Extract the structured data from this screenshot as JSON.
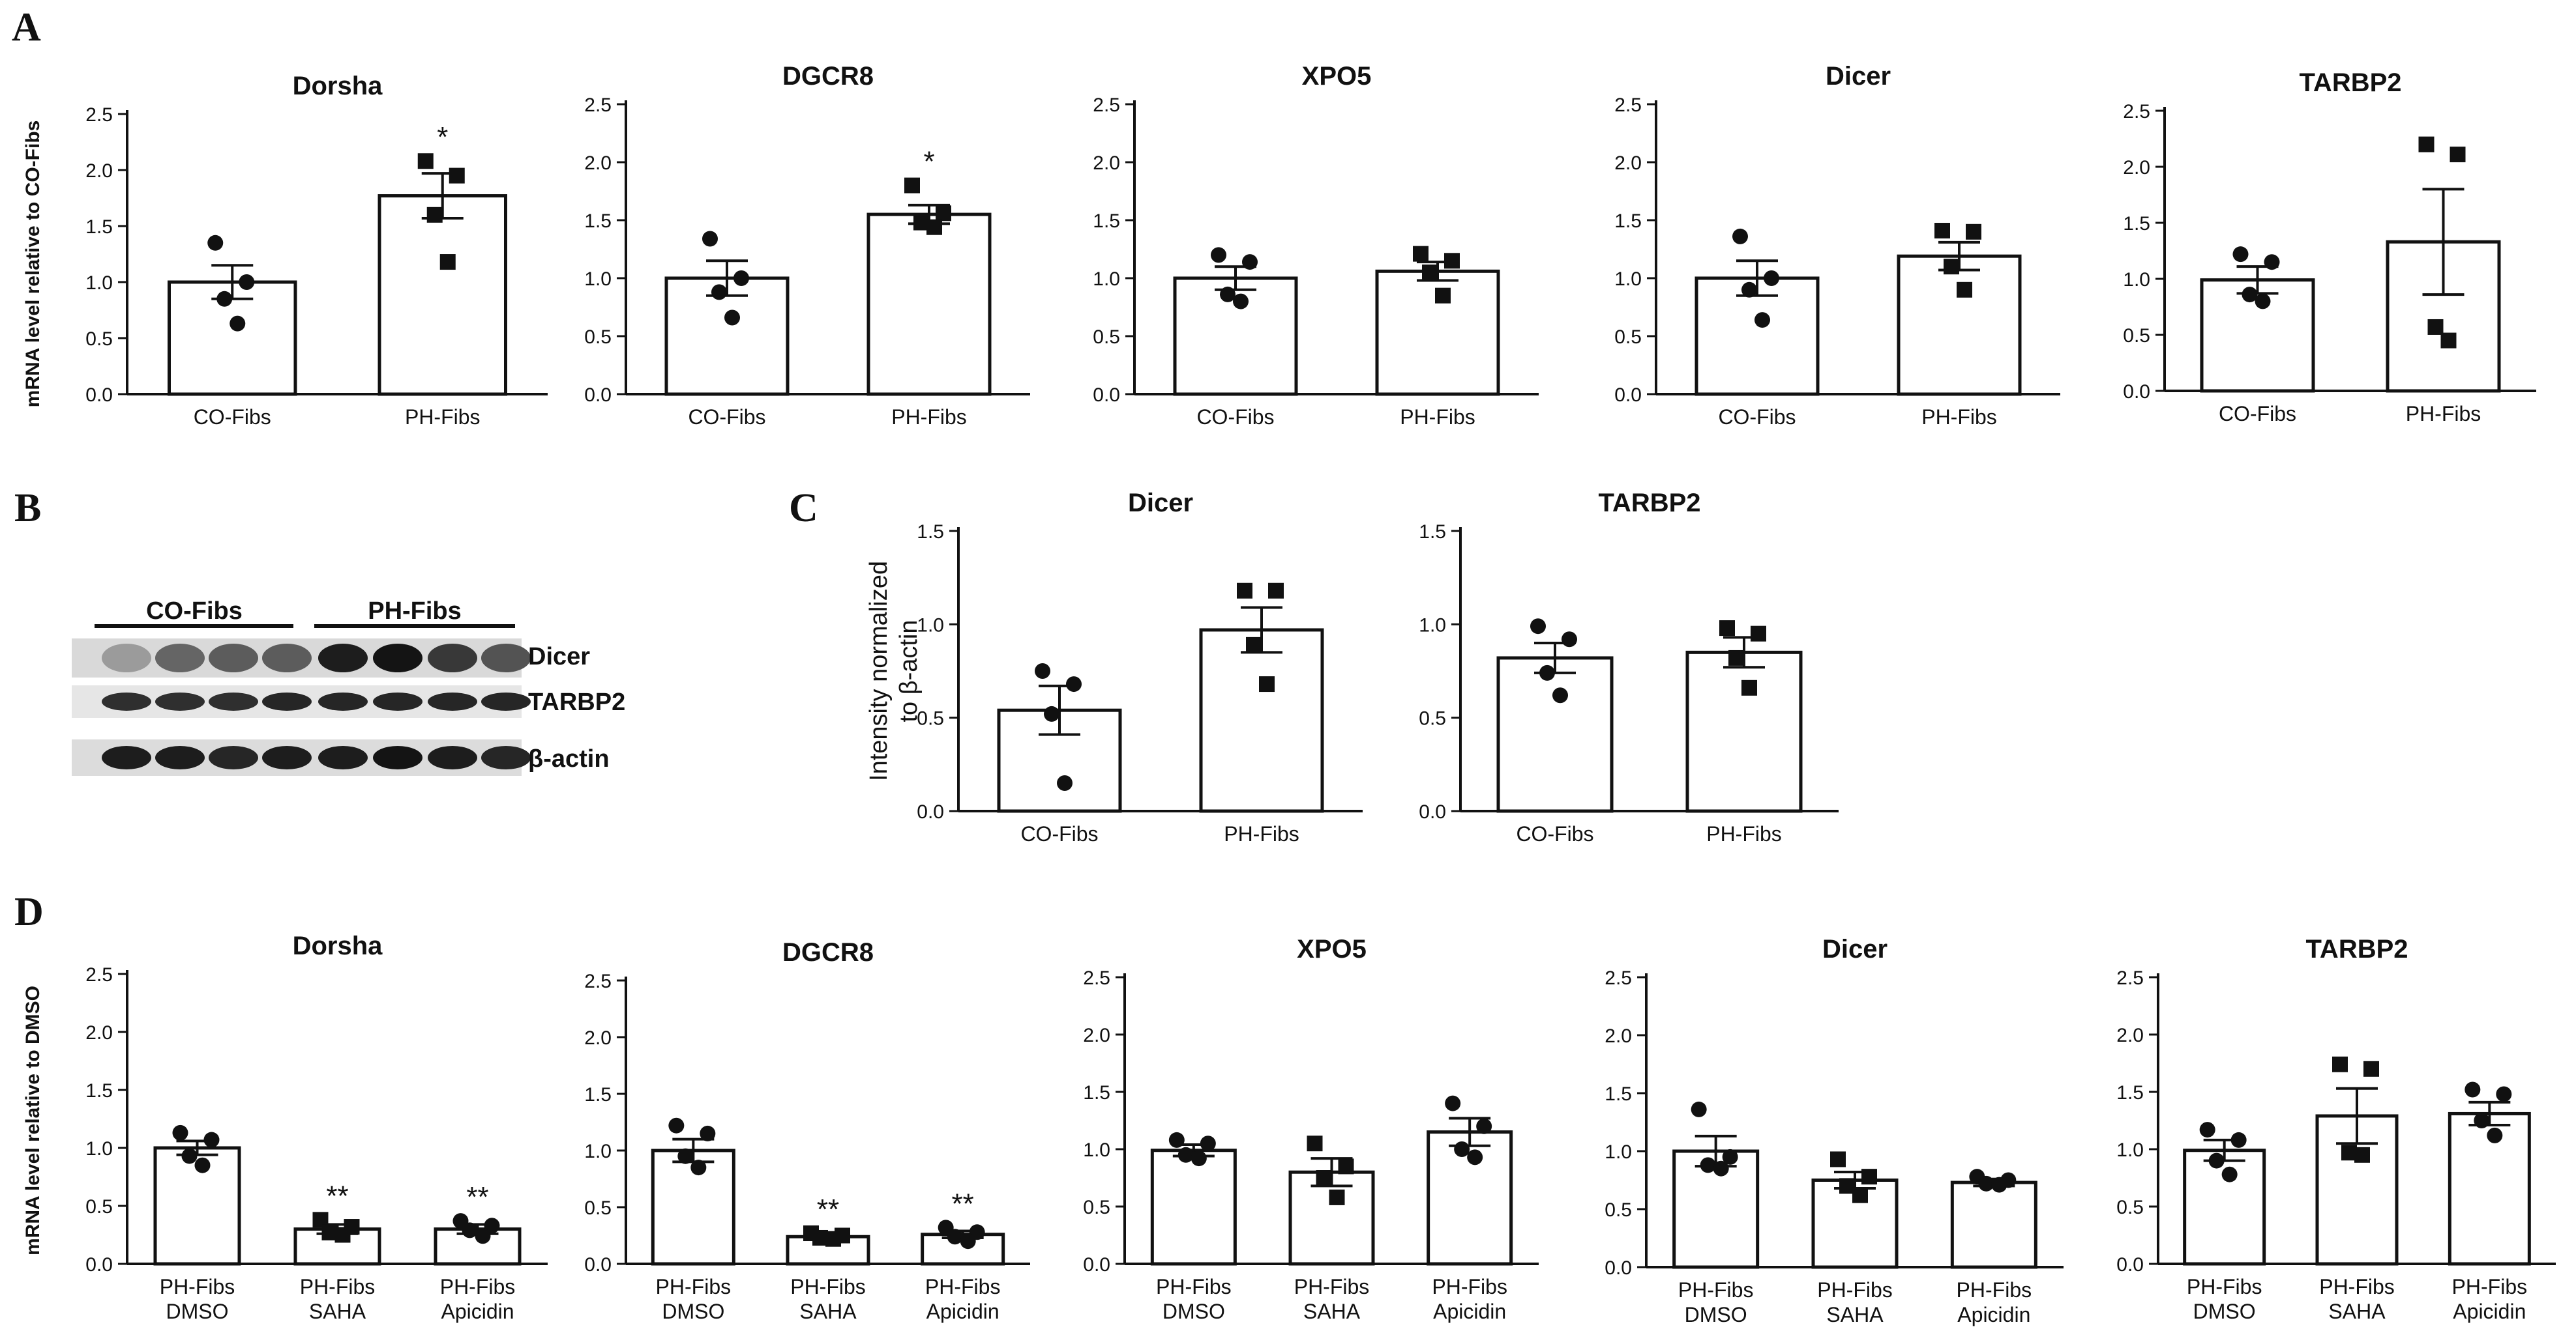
{
  "panel_labels": [
    "A",
    "B",
    "C",
    "D"
  ],
  "blot": {
    "groups": [
      "CO-Fibs",
      "PH-Fibs"
    ],
    "bands": [
      "Dicer",
      "TARBP2",
      "β-actin"
    ]
  },
  "chart_data": [
    {
      "id": "A1",
      "type": "bar",
      "title": "Dorsha",
      "ylabel": "mRNA level relative to CO-Fibs",
      "ylim": [
        0,
        2.5
      ],
      "categories": [
        "CO-Fibs",
        "PH-Fibs"
      ],
      "values": [
        1.0,
        1.77
      ],
      "errors": [
        0.15,
        0.2
      ],
      "significance": [
        "",
        "*"
      ],
      "points": [
        [
          1.35,
          1.0,
          0.85,
          0.63
        ],
        [
          2.08,
          1.95,
          1.6,
          1.18
        ]
      ],
      "markers": [
        "circle",
        "square"
      ]
    },
    {
      "id": "A2",
      "type": "bar",
      "title": "DGCR8",
      "ylabel": "",
      "ylim": [
        0,
        2.5
      ],
      "categories": [
        "CO-Fibs",
        "PH-Fibs"
      ],
      "values": [
        1.0,
        1.55
      ],
      "errors": [
        0.15,
        0.08
      ],
      "significance": [
        "",
        "*"
      ],
      "points": [
        [
          1.34,
          1.0,
          0.88,
          0.66
        ],
        [
          1.8,
          1.56,
          1.48,
          1.44
        ]
      ],
      "markers": [
        "circle",
        "square"
      ]
    },
    {
      "id": "A3",
      "type": "bar",
      "title": "XPO5",
      "ylabel": "",
      "ylim": [
        0,
        2.5
      ],
      "categories": [
        "CO-Fibs",
        "PH-Fibs"
      ],
      "values": [
        1.0,
        1.06
      ],
      "errors": [
        0.1,
        0.08
      ],
      "significance": [
        "",
        ""
      ],
      "points": [
        [
          1.2,
          1.14,
          0.86,
          0.8
        ],
        [
          1.21,
          1.15,
          1.05,
          0.85
        ]
      ],
      "markers": [
        "circle",
        "square"
      ]
    },
    {
      "id": "A4",
      "type": "bar",
      "title": "Dicer",
      "ylabel": "",
      "ylim": [
        0,
        2.5
      ],
      "categories": [
        "CO-Fibs",
        "PH-Fibs"
      ],
      "values": [
        1.0,
        1.19
      ],
      "errors": [
        0.15,
        0.12
      ],
      "significance": [
        "",
        ""
      ],
      "points": [
        [
          1.36,
          1.0,
          0.9,
          0.64
        ],
        [
          1.41,
          1.4,
          1.1,
          0.9
        ]
      ],
      "markers": [
        "circle",
        "square"
      ]
    },
    {
      "id": "A5",
      "type": "bar",
      "title": "TARBP2",
      "ylabel": "",
      "ylim": [
        0,
        2.5
      ],
      "categories": [
        "CO-Fibs",
        "PH-Fibs"
      ],
      "values": [
        0.99,
        1.33
      ],
      "errors": [
        0.12,
        0.47
      ],
      "significance": [
        "",
        ""
      ],
      "points": [
        [
          1.22,
          1.15,
          0.86,
          0.8
        ],
        [
          2.2,
          2.11,
          0.57,
          0.45
        ]
      ],
      "markers": [
        "circle",
        "square"
      ]
    },
    {
      "id": "C1",
      "type": "bar",
      "title": "Dicer",
      "ylabel": "Intensity normalized to β-actin",
      "ylim": [
        0,
        1.5
      ],
      "categories": [
        "CO-Fibs",
        "PH-Fibs"
      ],
      "values": [
        0.54,
        0.97
      ],
      "errors": [
        0.13,
        0.12
      ],
      "significance": [
        "",
        ""
      ],
      "points": [
        [
          0.75,
          0.68,
          0.52,
          0.15
        ],
        [
          1.18,
          1.18,
          0.89,
          0.68
        ]
      ],
      "markers": [
        "circle",
        "square"
      ]
    },
    {
      "id": "C2",
      "type": "bar",
      "title": "TARBP2",
      "ylabel": "",
      "ylim": [
        0,
        1.5
      ],
      "categories": [
        "CO-Fibs",
        "PH-Fibs"
      ],
      "values": [
        0.82,
        0.85
      ],
      "errors": [
        0.08,
        0.08
      ],
      "significance": [
        "",
        ""
      ],
      "points": [
        [
          0.99,
          0.92,
          0.74,
          0.62
        ],
        [
          0.98,
          0.95,
          0.82,
          0.66
        ]
      ],
      "markers": [
        "circle",
        "square"
      ]
    },
    {
      "id": "D1",
      "type": "bar",
      "title": "Dorsha",
      "ylabel": "mRNA level relative to DMSO",
      "ylim": [
        0,
        2.5
      ],
      "categories": [
        "PH-Fibs\nDMSO",
        "PH-Fibs\nSAHA",
        "PH-Fibs\nApicidin"
      ],
      "values": [
        1.0,
        0.3,
        0.3
      ],
      "errors": [
        0.06,
        0.04,
        0.04
      ],
      "significance": [
        "",
        "**",
        "**"
      ],
      "points": [
        [
          1.13,
          1.07,
          0.93,
          0.85
        ],
        [
          0.38,
          0.32,
          0.27,
          0.25
        ],
        [
          0.37,
          0.33,
          0.29,
          0.24
        ]
      ],
      "markers": [
        "circle",
        "square",
        "circle"
      ]
    },
    {
      "id": "D2",
      "type": "bar",
      "title": "DGCR8",
      "ylabel": "",
      "ylim": [
        0,
        2.5
      ],
      "categories": [
        "PH-Fibs\nDMSO",
        "PH-Fibs\nSAHA",
        "PH-Fibs\nApicidin"
      ],
      "values": [
        1.0,
        0.24,
        0.26
      ],
      "errors": [
        0.1,
        0.02,
        0.03
      ],
      "significance": [
        "",
        "**",
        "**"
      ],
      "points": [
        [
          1.22,
          1.15,
          0.95,
          0.85
        ],
        [
          0.27,
          0.25,
          0.23,
          0.22
        ],
        [
          0.32,
          0.28,
          0.24,
          0.2
        ]
      ],
      "markers": [
        "circle",
        "square",
        "circle"
      ]
    },
    {
      "id": "D3",
      "type": "bar",
      "title": "XPO5",
      "ylabel": "",
      "ylim": [
        0,
        2.5
      ],
      "categories": [
        "PH-Fibs\nDMSO",
        "PH-Fibs\nSAHA",
        "PH-Fibs\nApicidin"
      ],
      "values": [
        0.99,
        0.8,
        1.15
      ],
      "errors": [
        0.05,
        0.12,
        0.12
      ],
      "significance": [
        "",
        "",
        ""
      ],
      "points": [
        [
          1.08,
          1.05,
          0.95,
          0.92
        ],
        [
          1.05,
          0.85,
          0.75,
          0.58
        ],
        [
          1.4,
          1.2,
          1.0,
          0.93
        ]
      ],
      "markers": [
        "circle",
        "square",
        "circle"
      ]
    },
    {
      "id": "D4",
      "type": "bar",
      "title": "Dicer",
      "ylabel": "",
      "ylim": [
        0,
        2.5
      ],
      "categories": [
        "PH-Fibs\nDMSO",
        "PH-Fibs\nSAHA",
        "PH-Fibs\nApicidin"
      ],
      "values": [
        1.0,
        0.75,
        0.73
      ],
      "errors": [
        0.13,
        0.07,
        0.03
      ],
      "significance": [
        "",
        "",
        ""
      ],
      "points": [
        [
          1.36,
          0.95,
          0.88,
          0.85
        ],
        [
          0.93,
          0.78,
          0.7,
          0.62
        ],
        [
          0.78,
          0.75,
          0.72,
          0.71
        ]
      ],
      "markers": [
        "circle",
        "square",
        "circle"
      ]
    },
    {
      "id": "D5",
      "type": "bar",
      "title": "TARBP2",
      "ylabel": "",
      "ylim": [
        0,
        2.5
      ],
      "categories": [
        "PH-Fibs\nDMSO",
        "PH-Fibs\nSAHA",
        "PH-Fibs\nApicidin"
      ],
      "values": [
        0.99,
        1.29,
        1.31
      ],
      "errors": [
        0.09,
        0.24,
        0.1
      ],
      "significance": [
        "",
        "",
        ""
      ],
      "points": [
        [
          1.17,
          1.08,
          0.9,
          0.78
        ],
        [
          1.74,
          1.7,
          0.97,
          0.95
        ],
        [
          1.52,
          1.48,
          1.25,
          1.12
        ]
      ],
      "markers": [
        "circle",
        "square",
        "circle"
      ]
    }
  ]
}
